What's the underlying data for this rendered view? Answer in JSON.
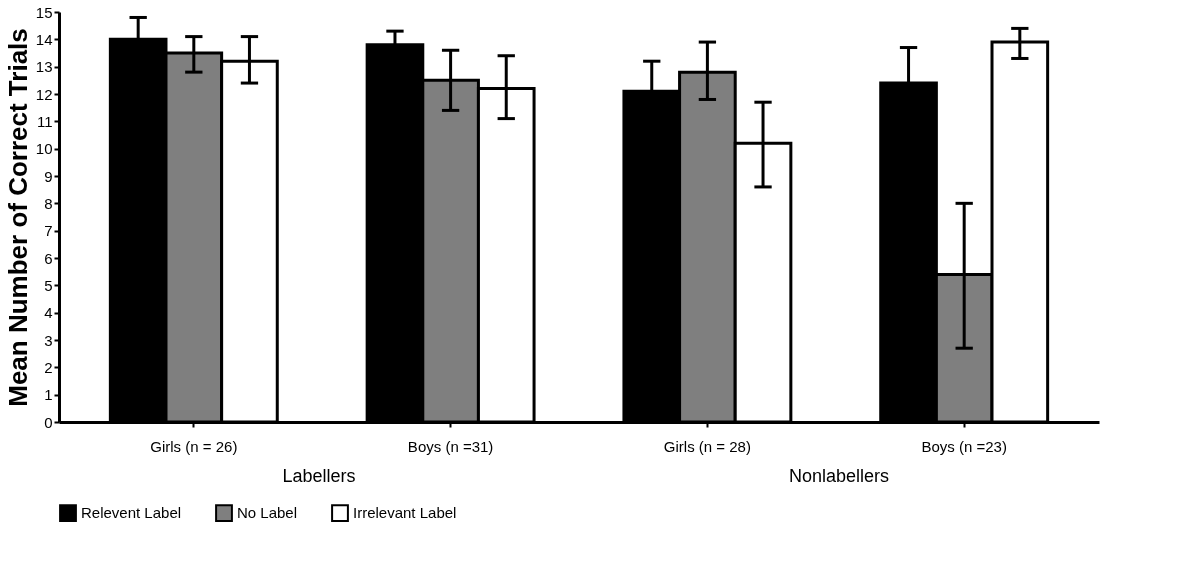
{
  "chart_data": {
    "type": "bar",
    "ylabel": "Mean Number of Correct Trials",
    "categories": [
      "Girls (n = 26)",
      "Boys (n =31)",
      "Girls (n = 28)",
      "Boys (n =23)"
    ],
    "series": [
      {
        "name": "Relevent Label",
        "color": "#000000",
        "values": [
          14.0,
          13.8,
          12.1,
          12.4
        ],
        "errors": [
          0.8,
          0.5,
          1.1,
          1.3
        ]
      },
      {
        "name": "No Label",
        "color": "#7f7f7f",
        "values": [
          13.5,
          12.5,
          12.8,
          5.4
        ],
        "errors": [
          [
            12.8,
            14.1
          ],
          [
            11.4,
            13.6
          ],
          [
            11.8,
            13.9
          ],
          [
            2.7,
            8.0
          ]
        ]
      },
      {
        "name": "Irrelevant Label",
        "color": "#ffffff",
        "values": [
          13.2,
          12.2,
          10.2,
          13.9
        ],
        "errors": [
          [
            12.4,
            14.1
          ],
          [
            11.1,
            13.4
          ],
          [
            8.6,
            11.7
          ],
          [
            13.3,
            14.4
          ]
        ]
      }
    ],
    "ylim": [
      0,
      15
    ],
    "yticks": [
      0,
      1,
      2,
      3,
      4,
      5,
      6,
      7,
      8,
      9,
      10,
      11,
      12,
      13,
      14,
      15
    ],
    "grid": false,
    "legend": "bottom",
    "annotations": [
      "Labellers",
      "Nonlabellers"
    ]
  }
}
